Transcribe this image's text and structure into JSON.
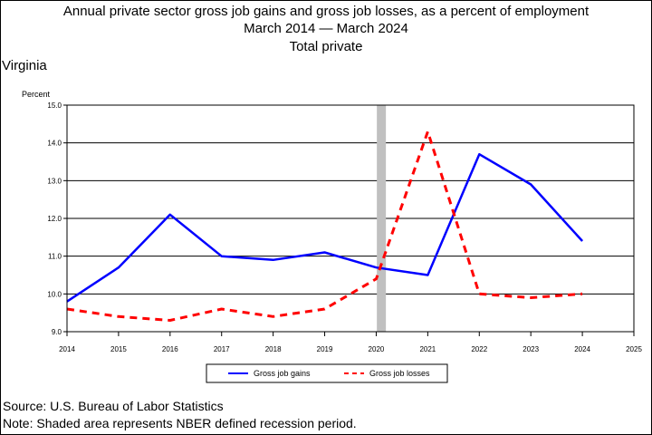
{
  "chart_data": {
    "type": "line",
    "title_lines": [
      "Annual private sector gross job gains and gross job losses, as a percent of employment",
      "March 2014 — March 2024",
      "Total private"
    ],
    "region": "Virginia",
    "ylabel": "Percent",
    "xlabel": "",
    "xlim": [
      2014,
      2025
    ],
    "ylim": [
      9.0,
      15.0
    ],
    "x_ticks": [
      "2014",
      "2015",
      "2016",
      "2017",
      "2018",
      "2019",
      "2020",
      "2021",
      "2022",
      "2023",
      "2024",
      "2025"
    ],
    "y_ticks": [
      "9.0",
      "10.0",
      "11.0",
      "12.0",
      "13.0",
      "14.0",
      "15.0"
    ],
    "grid": "horizontal",
    "recession_shading": {
      "x": 2020.1
    },
    "series": [
      {
        "name": "Gross job gains",
        "color": "#0000ff",
        "style": "solid",
        "x": [
          2014,
          2015,
          2016,
          2017,
          2018,
          2019,
          2020,
          2021,
          2022,
          2023,
          2024
        ],
        "y": [
          9.8,
          10.7,
          12.1,
          11.0,
          10.9,
          11.1,
          10.7,
          10.5,
          13.7,
          12.9,
          11.4
        ]
      },
      {
        "name": "Gross job losses",
        "color": "#ff0000",
        "style": "dashed",
        "x": [
          2014,
          2015,
          2016,
          2017,
          2018,
          2019,
          2020,
          2021,
          2022,
          2023,
          2024
        ],
        "y": [
          9.6,
          9.4,
          9.3,
          9.6,
          9.4,
          9.6,
          10.4,
          14.3,
          10.0,
          9.9,
          10.0
        ]
      }
    ]
  },
  "footer": {
    "source": "Source: U.S. Bureau of Labor Statistics",
    "note": "Note: Shaded area represents NBER defined recession period."
  }
}
